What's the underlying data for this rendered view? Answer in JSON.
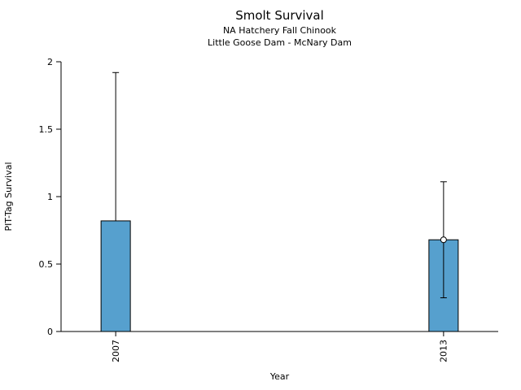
{
  "page": {
    "background": "#ffffff"
  },
  "chart_data": {
    "type": "bar",
    "title": "Smolt Survival",
    "subtitle_lines": [
      "NA Hatchery Fall Chinook",
      "Little Goose Dam - McNary Dam"
    ],
    "xlabel": "Year",
    "ylabel": "PIT-Tag Survival",
    "categories": [
      "2007",
      "2013"
    ],
    "x_years": [
      2007,
      2013
    ],
    "xlim": [
      2006,
      2014
    ],
    "values": [
      0.82,
      0.68
    ],
    "error_low": [
      0.82,
      0.25
    ],
    "error_high": [
      1.92,
      1.11
    ],
    "point_values": [
      null,
      0.68
    ],
    "yticks": [
      0,
      0.5,
      1,
      1.5,
      2
    ],
    "ytick_labels": [
      "0",
      "0.5",
      "1",
      "1.5",
      "2"
    ],
    "ylim": [
      0,
      2
    ],
    "bar_color": "#56A0CE",
    "bar_edge_color": "#000000",
    "axis_color": "#000000",
    "text_color": "#000000",
    "grid": false,
    "legend": "none"
  }
}
